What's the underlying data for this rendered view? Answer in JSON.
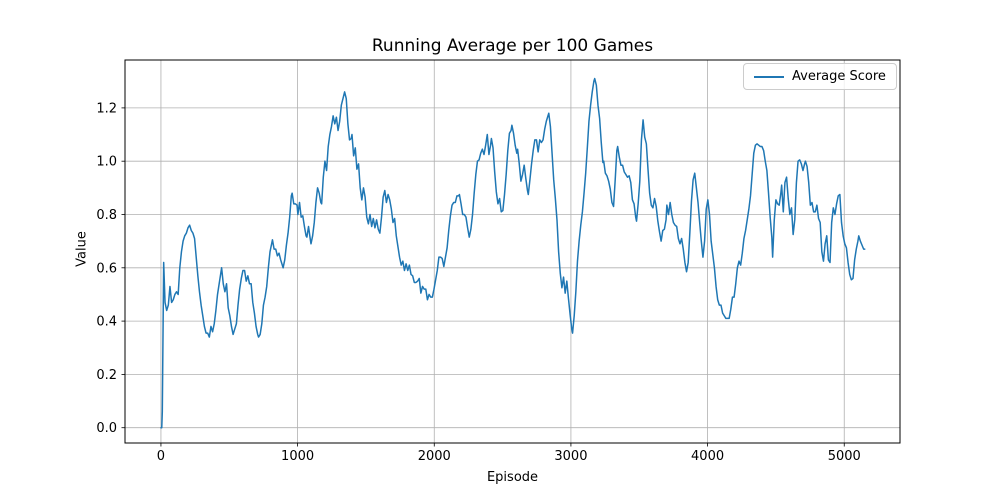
{
  "chart_data": {
    "type": "line",
    "title": "Running Average per 100 Games",
    "xlabel": "Episode",
    "ylabel": "Value",
    "legend_label": "Average Score",
    "legend_position": "upper right",
    "grid": true,
    "line_color": "#1f77b4",
    "grid_color": "#b0b0b0",
    "xlim": [
      -263,
      5408
    ],
    "ylim": [
      -0.0574,
      1.3797
    ],
    "xticks": [
      0,
      1000,
      2000,
      3000,
      4000,
      5000
    ],
    "xticklabels": [
      "0",
      "1000",
      "2000",
      "3000",
      "4000",
      "5000"
    ],
    "yticks": [
      0.0,
      0.2,
      0.4,
      0.6,
      0.8,
      1.0,
      1.2
    ],
    "yticklabels": [
      "0.0",
      "0.2",
      "0.4",
      "0.6",
      "0.8",
      "1.0",
      "1.2"
    ],
    "series": [
      {
        "name": "Average Score",
        "x": [
          0,
          6,
          10,
          16,
          20,
          30,
          42,
          54,
          66,
          78,
          90,
          102,
          114,
          126,
          138,
          150,
          162,
          174,
          186,
          198,
          210,
          222,
          234,
          246,
          258,
          270,
          282,
          294,
          306,
          318,
          330,
          342,
          354,
          366,
          378,
          390,
          402,
          414,
          426,
          438,
          444,
          456,
          468,
          480,
          492,
          504,
          516,
          528,
          540,
          552,
          564,
          576,
          588,
          600,
          612,
          624,
          636,
          648,
          660,
          672,
          684,
          696,
          708,
          714,
          726,
          738,
          750,
          762,
          774,
          786,
          798,
          810,
          816,
          828,
          840,
          852,
          864,
          876,
          888,
          894,
          906,
          918,
          930,
          942,
          954,
          960,
          972,
          984,
          996,
          1002,
          1014,
          1026,
          1038,
          1050,
          1062,
          1068,
          1080,
          1092,
          1098,
          1110,
          1122,
          1134,
          1146,
          1158,
          1170,
          1176,
          1188,
          1200,
          1212,
          1224,
          1236,
          1248,
          1260,
          1272,
          1284,
          1296,
          1308,
          1320,
          1332,
          1344,
          1356,
          1368,
          1380,
          1392,
          1398,
          1410,
          1422,
          1434,
          1446,
          1458,
          1470,
          1482,
          1494,
          1506,
          1518,
          1530,
          1542,
          1554,
          1566,
          1578,
          1590,
          1602,
          1614,
          1626,
          1638,
          1650,
          1662,
          1674,
          1686,
          1698,
          1710,
          1722,
          1734,
          1746,
          1758,
          1770,
          1782,
          1794,
          1806,
          1818,
          1830,
          1842,
          1854,
          1866,
          1878,
          1890,
          1902,
          1914,
          1926,
          1938,
          1950,
          1962,
          1974,
          1986,
          1998,
          2010,
          2022,
          2034,
          2046,
          2058,
          2070,
          2082,
          2094,
          2106,
          2118,
          2130,
          2142,
          2154,
          2166,
          2178,
          2184,
          2196,
          2208,
          2220,
          2232,
          2244,
          2256,
          2268,
          2280,
          2292,
          2304,
          2316,
          2328,
          2340,
          2352,
          2364,
          2376,
          2388,
          2400,
          2412,
          2418,
          2430,
          2442,
          2454,
          2466,
          2478,
          2490,
          2502,
          2514,
          2526,
          2538,
          2550,
          2562,
          2568,
          2580,
          2592,
          2604,
          2610,
          2622,
          2634,
          2646,
          2658,
          2670,
          2682,
          2688,
          2700,
          2712,
          2724,
          2736,
          2748,
          2760,
          2772,
          2784,
          2796,
          2808,
          2820,
          2832,
          2838,
          2850,
          2862,
          2874,
          2886,
          2898,
          2910,
          2922,
          2934,
          2946,
          2958,
          2970,
          2982,
          2994,
          3006,
          3012,
          3024,
          3036,
          3048,
          3060,
          3072,
          3084,
          3096,
          3108,
          3120,
          3132,
          3144,
          3156,
          3168,
          3174,
          3186,
          3198,
          3210,
          3222,
          3234,
          3240,
          3252,
          3264,
          3276,
          3288,
          3300,
          3312,
          3324,
          3336,
          3342,
          3354,
          3366,
          3378,
          3390,
          3402,
          3414,
          3426,
          3438,
          3450,
          3462,
          3474,
          3480,
          3492,
          3504,
          3516,
          3528,
          3540,
          3552,
          3564,
          3576,
          3588,
          3600,
          3612,
          3624,
          3636,
          3648,
          3660,
          3672,
          3684,
          3696,
          3702,
          3714,
          3726,
          3738,
          3750,
          3762,
          3774,
          3786,
          3798,
          3810,
          3822,
          3834,
          3846,
          3858,
          3870,
          3882,
          3894,
          3906,
          3918,
          3930,
          3942,
          3954,
          3966,
          3978,
          3990,
          4002,
          4014,
          4026,
          4038,
          4050,
          4062,
          4074,
          4086,
          4098,
          4110,
          4122,
          4134,
          4146,
          4158,
          4170,
          4182,
          4194,
          4206,
          4218,
          4230,
          4242,
          4254,
          4266,
          4278,
          4290,
          4302,
          4314,
          4326,
          4338,
          4350,
          4362,
          4374,
          4386,
          4398,
          4410,
          4422,
          4434,
          4446,
          4458,
          4470,
          4476,
          4488,
          4500,
          4512,
          4524,
          4536,
          4542,
          4554,
          4566,
          4578,
          4590,
          4602,
          4614,
          4626,
          4638,
          4650,
          4662,
          4674,
          4686,
          4698,
          4710,
          4716,
          4728,
          4740,
          4752,
          4764,
          4776,
          4788,
          4800,
          4812,
          4824,
          4836,
          4848,
          4860,
          4872,
          4884,
          4896,
          4908,
          4920,
          4932,
          4944,
          4956,
          4968,
          4980,
          4992,
          5004,
          5016,
          5028,
          5040,
          5052,
          5064,
          5076,
          5088,
          5100,
          5106,
          5118,
          5130,
          5142,
          5150
        ],
        "y": [
          0.0,
          0.0,
          0.06,
          0.4,
          0.62,
          0.47,
          0.44,
          0.46,
          0.53,
          0.47,
          0.48,
          0.5,
          0.51,
          0.5,
          0.6,
          0.66,
          0.7,
          0.72,
          0.73,
          0.75,
          0.76,
          0.74,
          0.73,
          0.71,
          0.64,
          0.57,
          0.51,
          0.46,
          0.42,
          0.38,
          0.355,
          0.355,
          0.34,
          0.38,
          0.36,
          0.39,
          0.44,
          0.5,
          0.54,
          0.58,
          0.6,
          0.54,
          0.51,
          0.54,
          0.45,
          0.42,
          0.38,
          0.35,
          0.37,
          0.39,
          0.46,
          0.52,
          0.56,
          0.59,
          0.59,
          0.55,
          0.57,
          0.54,
          0.54,
          0.47,
          0.43,
          0.38,
          0.35,
          0.34,
          0.35,
          0.39,
          0.46,
          0.49,
          0.53,
          0.6,
          0.66,
          0.69,
          0.705,
          0.67,
          0.67,
          0.645,
          0.655,
          0.63,
          0.61,
          0.6,
          0.63,
          0.685,
          0.73,
          0.79,
          0.87,
          0.88,
          0.84,
          0.84,
          0.835,
          0.8,
          0.845,
          0.79,
          0.795,
          0.755,
          0.72,
          0.715,
          0.755,
          0.71,
          0.69,
          0.72,
          0.77,
          0.845,
          0.9,
          0.88,
          0.845,
          0.84,
          0.94,
          1.0,
          0.965,
          1.055,
          1.1,
          1.13,
          1.17,
          1.14,
          1.165,
          1.115,
          1.15,
          1.21,
          1.235,
          1.26,
          1.235,
          1.14,
          1.08,
          1.085,
          1.1,
          1.02,
          1.05,
          0.97,
          0.99,
          0.9,
          0.855,
          0.9,
          0.865,
          0.79,
          0.765,
          0.8,
          0.755,
          0.785,
          0.75,
          0.78,
          0.745,
          0.73,
          0.79,
          0.865,
          0.89,
          0.845,
          0.875,
          0.855,
          0.82,
          0.77,
          0.785,
          0.72,
          0.68,
          0.64,
          0.61,
          0.625,
          0.59,
          0.615,
          0.59,
          0.61,
          0.575,
          0.57,
          0.545,
          0.545,
          0.55,
          0.56,
          0.505,
          0.53,
          0.52,
          0.52,
          0.48,
          0.5,
          0.49,
          0.49,
          0.52,
          0.555,
          0.59,
          0.64,
          0.64,
          0.635,
          0.605,
          0.64,
          0.675,
          0.74,
          0.795,
          0.835,
          0.845,
          0.845,
          0.87,
          0.87,
          0.875,
          0.84,
          0.8,
          0.8,
          0.79,
          0.75,
          0.715,
          0.745,
          0.8,
          0.88,
          0.95,
          1.0,
          1.005,
          1.03,
          1.045,
          1.025,
          1.06,
          1.1,
          1.025,
          1.06,
          1.085,
          1.05,
          0.96,
          0.885,
          0.84,
          0.86,
          0.81,
          0.815,
          0.875,
          0.95,
          1.04,
          1.105,
          1.115,
          1.135,
          1.105,
          1.06,
          1.03,
          1.045,
          0.99,
          0.925,
          0.95,
          0.985,
          0.935,
          0.89,
          0.875,
          0.93,
          0.99,
          1.04,
          1.08,
          1.08,
          1.035,
          1.08,
          1.07,
          1.08,
          1.12,
          1.15,
          1.17,
          1.18,
          1.13,
          1.03,
          0.93,
          0.86,
          0.78,
          0.66,
          0.58,
          0.525,
          0.565,
          0.505,
          0.55,
          0.485,
          0.425,
          0.37,
          0.355,
          0.42,
          0.51,
          0.625,
          0.7,
          0.76,
          0.81,
          0.88,
          0.955,
          1.05,
          1.15,
          1.21,
          1.26,
          1.3,
          1.31,
          1.285,
          1.21,
          1.16,
          1.07,
          0.995,
          1.0,
          0.955,
          0.945,
          0.925,
          0.895,
          0.845,
          0.83,
          0.93,
          1.04,
          1.055,
          1.015,
          0.985,
          0.985,
          0.96,
          0.95,
          0.94,
          0.945,
          0.92,
          0.855,
          0.84,
          0.79,
          0.775,
          0.84,
          0.925,
          1.08,
          1.155,
          1.09,
          1.065,
          0.97,
          0.88,
          0.835,
          0.825,
          0.86,
          0.83,
          0.775,
          0.735,
          0.7,
          0.74,
          0.745,
          0.78,
          0.835,
          0.8,
          0.845,
          0.8,
          0.77,
          0.76,
          0.755,
          0.71,
          0.69,
          0.71,
          0.67,
          0.62,
          0.585,
          0.62,
          0.73,
          0.85,
          0.93,
          0.955,
          0.9,
          0.845,
          0.77,
          0.7,
          0.64,
          0.7,
          0.82,
          0.855,
          0.8,
          0.7,
          0.65,
          0.6,
          0.53,
          0.48,
          0.46,
          0.46,
          0.43,
          0.42,
          0.41,
          0.41,
          0.41,
          0.445,
          0.49,
          0.49,
          0.54,
          0.6,
          0.625,
          0.61,
          0.655,
          0.71,
          0.74,
          0.78,
          0.82,
          0.87,
          0.95,
          1.03,
          1.06,
          1.065,
          1.06,
          1.055,
          1.055,
          1.04,
          1.0,
          0.965,
          0.88,
          0.79,
          0.715,
          0.64,
          0.78,
          0.855,
          0.84,
          0.835,
          0.88,
          0.91,
          0.81,
          0.92,
          0.94,
          0.86,
          0.8,
          0.825,
          0.725,
          0.78,
          0.92,
          1.0,
          1.005,
          0.99,
          0.965,
          0.99,
          1.0,
          0.98,
          0.92,
          0.835,
          0.845,
          0.81,
          0.81,
          0.835,
          0.785,
          0.77,
          0.66,
          0.625,
          0.69,
          0.72,
          0.63,
          0.62,
          0.77,
          0.825,
          0.8,
          0.84,
          0.87,
          0.875,
          0.77,
          0.72,
          0.69,
          0.675,
          0.62,
          0.575,
          0.555,
          0.56,
          0.63,
          0.67,
          0.7,
          0.72,
          0.7,
          0.685,
          0.67,
          0.67
        ]
      }
    ]
  }
}
